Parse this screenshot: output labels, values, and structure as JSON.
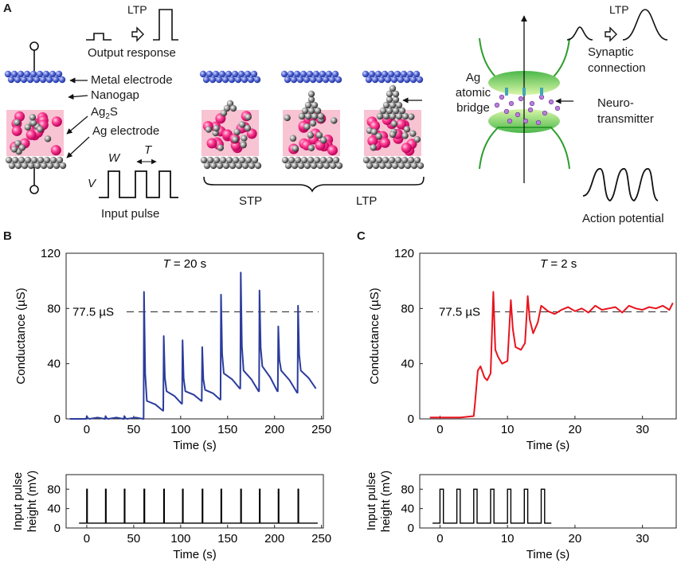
{
  "panel_a": {
    "letter": "A",
    "ltp_left": "LTP",
    "output_response": "Output response",
    "metal_electrode": "Metal electrode",
    "nanogap": "Nanogap",
    "ag2s_base": "Ag",
    "ag2s_sub": "2",
    "ag2s_tail": "S",
    "ag_electrode": "Ag electrode",
    "w_label": "W",
    "t_label": "T",
    "v_label": "V",
    "input_pulse": "Input pulse",
    "stp": "STP",
    "ltp_bracket": "LTP",
    "bridge_line1": "Ag",
    "bridge_line2": "atomic",
    "bridge_line3": "bridge",
    "ltp_right": "LTP",
    "synaptic_line1": "Synaptic",
    "synaptic_line2": "connection",
    "neuro_line1": "Neuro-",
    "neuro_line2": "transmitter",
    "action_potential": "Action potential"
  },
  "chart_data": [
    {
      "id": "B-top",
      "panel": "B",
      "type": "line",
      "annotation": "T = 20 s",
      "annotation_T": "T",
      "annotation_rest": " = 20 s",
      "ylabel": "Conductance (µS)",
      "xlabel": "Time (s)",
      "xlim": [
        -22,
        252
      ],
      "ylim": [
        0,
        120
      ],
      "xticks": [
        0,
        50,
        100,
        150,
        200,
        250
      ],
      "yticks": [
        0,
        40,
        80,
        120
      ],
      "reference_line": {
        "value": 77.5,
        "label": "77.5 µS"
      },
      "color": "#2b3c9c",
      "pulse_times": [
        0,
        20,
        40,
        61,
        82,
        102,
        123,
        143,
        164,
        184,
        204,
        225
      ],
      "spike_peaks": [
        2,
        2,
        2,
        92,
        60,
        57,
        52,
        90,
        106,
        93,
        67,
        82
      ],
      "post_levels": [
        0,
        0,
        0,
        13,
        20,
        20,
        21,
        33,
        35,
        38,
        35,
        35
      ],
      "baseline_end": [
        0,
        0,
        0,
        6,
        11,
        13,
        14,
        22,
        20,
        20,
        19,
        22
      ]
    },
    {
      "id": "B-bottom",
      "panel": "B",
      "type": "line",
      "ylabel_line1": "Input pulse",
      "ylabel_line2": "height (mV)",
      "xlabel": "Time (s)",
      "xlim": [
        -22,
        252
      ],
      "ylim": [
        0,
        110
      ],
      "xticks": [
        0,
        50,
        100,
        150,
        200,
        250
      ],
      "yticks": [
        0,
        40,
        80
      ],
      "baseline": 10,
      "pulse_height": 80,
      "pulse_times": [
        0,
        20,
        40,
        61,
        82,
        102,
        123,
        143,
        164,
        184,
        204,
        225
      ],
      "color": "#000000"
    },
    {
      "id": "C-top",
      "panel": "C",
      "type": "line",
      "annotation": "T = 2 s",
      "annotation_T": "T",
      "annotation_rest": " = 2 s",
      "ylabel": "Conductance (µS)",
      "xlabel": "Time (s)",
      "xlim": [
        -3,
        35
      ],
      "ylim": [
        0,
        120
      ],
      "xticks": [
        0,
        10,
        20,
        30
      ],
      "yticks": [
        0,
        40,
        80,
        120
      ],
      "reference_line": {
        "value": 77.5,
        "label": "77.5 µS"
      },
      "color": "#e8141e",
      "series_x": [
        -1.5,
        0,
        1,
        2,
        3,
        4,
        5,
        5.2,
        5.6,
        6,
        6.6,
        7,
        7.5,
        7.9,
        8.2,
        8.6,
        9.2,
        10,
        10.5,
        10.8,
        11.2,
        12,
        12.6,
        13,
        13.3,
        13.8,
        14.5,
        15,
        15.5,
        16,
        17,
        18,
        19,
        20,
        21,
        22,
        23,
        24,
        25,
        26,
        27,
        28,
        29,
        30,
        31,
        32,
        33,
        34,
        34.5
      ],
      "series_y": [
        1,
        1,
        1,
        1,
        1,
        1.5,
        2,
        12,
        35,
        38,
        30,
        28,
        33,
        92,
        50,
        45,
        40,
        42,
        86,
        65,
        52,
        50,
        55,
        89,
        72,
        62,
        70,
        82,
        80,
        78,
        76,
        79,
        81,
        78,
        80,
        77,
        82,
        79,
        80,
        81,
        77,
        82,
        80,
        79,
        81,
        80,
        82,
        79,
        84
      ]
    },
    {
      "id": "C-bottom",
      "panel": "C",
      "type": "line",
      "ylabel_line1": "Input pulse",
      "ylabel_line2": "height (mV)",
      "xlabel": "Time (s)",
      "xlim": [
        -3,
        35
      ],
      "ylim": [
        0,
        110
      ],
      "xticks": [
        0,
        10,
        20,
        30
      ],
      "yticks": [
        0,
        40,
        80
      ],
      "baseline": 10,
      "pulse_height": 80,
      "pulse_width": 0.5,
      "pulse_times": [
        0,
        2.5,
        5,
        7.5,
        10,
        12.5,
        15
      ],
      "color": "#000000"
    }
  ],
  "panel_letters": {
    "b": "B",
    "c": "C"
  }
}
